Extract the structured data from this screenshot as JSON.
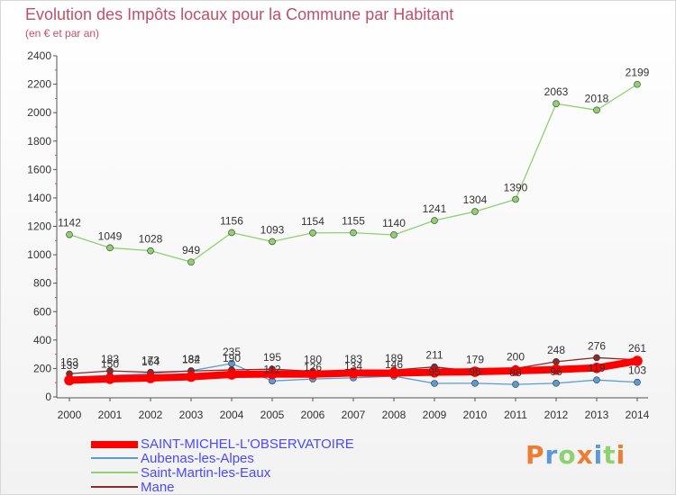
{
  "chart_data": {
    "type": "line",
    "title": "Evolution des Impôts locaux pour la Commune par Habitant",
    "subtitle": "(en € et par an)",
    "ylim": [
      0,
      2400
    ],
    "yticks": [
      "0",
      "200",
      "400",
      "600",
      "800",
      "1000",
      "1200",
      "1400",
      "1600",
      "1800",
      "2000",
      "2200",
      "2400"
    ],
    "categories": [
      "2000",
      "2001",
      "2002",
      "2003",
      "2004",
      "2005",
      "2006",
      "2007",
      "2008",
      "2009",
      "2010",
      "2011",
      "2012",
      "2013",
      "2014"
    ],
    "grid": false,
    "legend_position": "bottom-left",
    "series": [
      {
        "name": "SAINT-MICHEL-L'OBSERVATOIRE",
        "color": "#ff0000",
        "values": [
          117,
          127,
          133,
          142,
          158,
          161,
          160,
          168,
          168,
          173,
          177,
          184,
          192,
          204,
          253
        ],
        "labels": [
          "",
          "",
          "",
          "",
          "",
          "",
          "",
          "",
          "",
          "",
          "",
          "",
          "",
          "",
          ""
        ]
      },
      {
        "name": "Aubenas-les-Alpes",
        "color": "#5b9bd5",
        "values": [
          139,
          150,
          164,
          184,
          235,
          112,
          126,
          134,
          146,
          95,
          96,
          88,
          96,
          119,
          103
        ],
        "labels": [
          "139",
          "150",
          "164",
          "184",
          "235",
          "112",
          "126",
          "134",
          "146",
          "95",
          "96",
          "88",
          "96",
          "119",
          "103"
        ]
      },
      {
        "name": "Saint-Martin-les-Eaux",
        "color": "#8ed16f",
        "values": [
          1142,
          1049,
          1028,
          949,
          1156,
          1093,
          1154,
          1155,
          1140,
          1241,
          1304,
          1390,
          2063,
          2018,
          2199
        ],
        "labels": [
          "1142",
          "1049",
          "1028",
          "949",
          "1156",
          "1093",
          "1154",
          "1155",
          "1140",
          "1241",
          "1304",
          "1390",
          "2063",
          "2018",
          "2199"
        ]
      },
      {
        "name": "Mane",
        "color": "#8b2a2a",
        "values": [
          163,
          183,
          173,
          182,
          190,
          195,
          180,
          183,
          189,
          211,
          179,
          200,
          248,
          276,
          261
        ],
        "labels": [
          "163",
          "183",
          "173",
          "182",
          "190",
          "195",
          "180",
          "183",
          "189",
          "211",
          "179",
          "200",
          "248",
          "276",
          "261"
        ]
      }
    ]
  },
  "brand": {
    "logo_letters": [
      "P",
      "r",
      "o",
      "x",
      "i",
      "t",
      "i"
    ],
    "logo_colors": [
      "#ee7d31",
      "#5b9bd5",
      "#8ed16f",
      "#ee7d31",
      "#5b9bd5",
      "#8ed16f",
      "#ee7d31"
    ]
  }
}
